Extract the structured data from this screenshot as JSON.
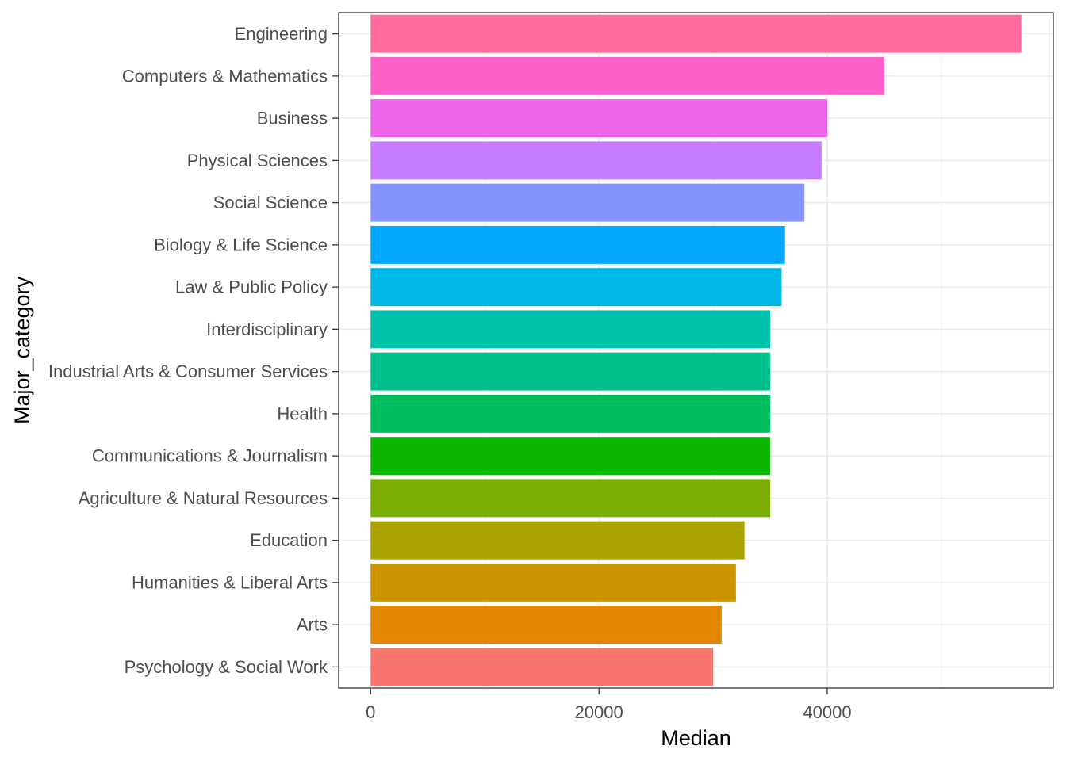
{
  "chart_data": {
    "type": "bar",
    "orientation": "horizontal",
    "xlabel": "Median",
    "ylabel": "Major_category",
    "xlim": [
      -2800,
      59800
    ],
    "x_ticks": [
      0,
      20000,
      40000
    ],
    "x_tick_labels": [
      "0",
      "20000",
      "40000"
    ],
    "x_minor_ticks": [
      10000,
      30000,
      50000
    ],
    "grid": true,
    "legend": "none",
    "categories": [
      "Engineering",
      "Computers & Mathematics",
      "Business",
      "Physical Sciences",
      "Social Science",
      "Biology & Life Science",
      "Law & Public Policy",
      "Interdisciplinary",
      "Industrial Arts & Consumer Services",
      "Health",
      "Communications & Journalism",
      "Agriculture & Natural Resources",
      "Education",
      "Humanities & Liberal Arts",
      "Arts",
      "Psychology & Social Work"
    ],
    "values": [
      57000,
      45000,
      40000,
      39500,
      38000,
      36300,
      36000,
      35000,
      35000,
      35000,
      35000,
      35000,
      32750,
      32000,
      30750,
      30000
    ],
    "colors": [
      "#FF6C9C",
      "#FF61C9",
      "#F066EA",
      "#C77CFF",
      "#8494FF",
      "#00A9FF",
      "#00B8E7",
      "#00C1AA",
      "#00C08B",
      "#00BD5F",
      "#0CB702",
      "#7CAE00",
      "#ABA300",
      "#CD9600",
      "#E58700",
      "#F8766D"
    ]
  }
}
